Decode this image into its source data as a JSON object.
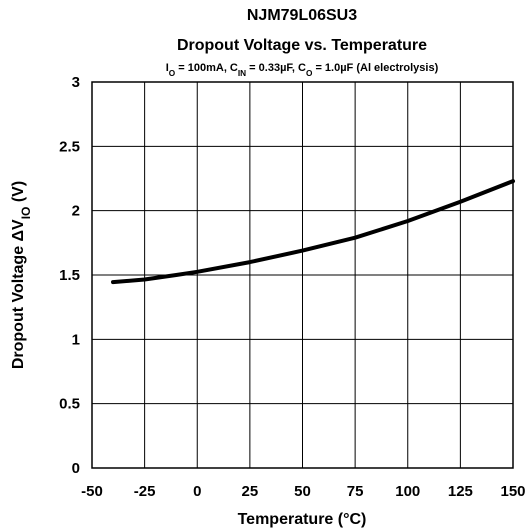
{
  "chart_data": {
    "type": "line",
    "title": "NJM79L06SU3",
    "title2": "Dropout Voltage vs. Temperature",
    "subtitle": [
      {
        "text": "I"
      },
      {
        "sub": "O"
      },
      {
        "text": " = 100mA, C"
      },
      {
        "sub": "IN"
      },
      {
        "text": " = 0.33µF, C"
      },
      {
        "sub": "O"
      },
      {
        "text": " = 1.0µF (Al electrolysis)"
      }
    ],
    "ylabel": [
      {
        "text": "Dropout Voltage ΔV"
      },
      {
        "sub": "IO"
      },
      {
        "text": " (V)"
      }
    ],
    "xlabel": "Temperature (°C)",
    "x": [
      -40,
      -25,
      -10,
      0,
      25,
      50,
      75,
      100,
      125,
      150
    ],
    "series": [
      {
        "color": "#000000",
        "values": [
          1.445,
          1.465,
          1.5,
          1.525,
          1.6,
          1.69,
          1.79,
          1.92,
          2.07,
          2.23
        ]
      }
    ],
    "xlim": [
      -50,
      150
    ],
    "xticks": [
      -50,
      -25,
      0,
      25,
      50,
      75,
      100,
      125,
      150
    ],
    "ylim": [
      0,
      3
    ],
    "yticks": [
      0,
      0.5,
      1,
      1.5,
      2,
      2.5,
      3
    ],
    "grid": true
  }
}
